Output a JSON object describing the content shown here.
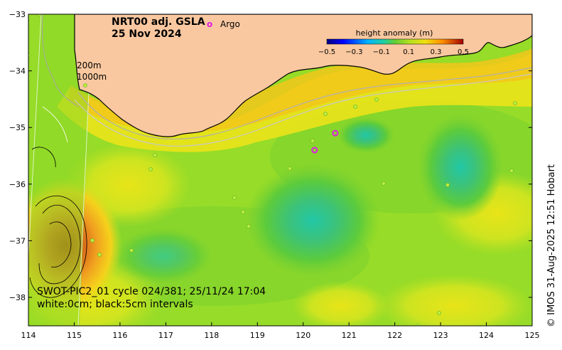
{
  "title": {
    "line1": "NRT00 adj. GSLA",
    "line2": "25 Nov 2024"
  },
  "legend": {
    "argo_symbol": "o",
    "argo_label": "Argo"
  },
  "colorbar": {
    "title": "height anomaly (m)",
    "ticks": [
      "−0.5",
      "−0.3",
      "−0.1",
      "0.1",
      "0.3",
      "0.5"
    ],
    "tick_values": [
      -0.5,
      -0.3,
      -0.1,
      0.1,
      0.3,
      0.5
    ]
  },
  "isobaths": {
    "shallow": "200m",
    "deep": "1000m"
  },
  "axes": {
    "lon_ticks": [
      "114",
      "115",
      "116",
      "117",
      "118",
      "119",
      "120",
      "121",
      "122",
      "123",
      "124",
      "125"
    ],
    "lon_values": [
      114,
      115,
      116,
      117,
      118,
      119,
      120,
      121,
      122,
      123,
      124,
      125
    ],
    "lat_ticks": [
      "−33",
      "−34",
      "−35",
      "−36",
      "−37",
      "−38"
    ],
    "lat_values": [
      -33,
      -34,
      -35,
      -36,
      -37,
      -38
    ],
    "lon_range": [
      114,
      125
    ],
    "lat_range": [
      -38.5,
      -33
    ]
  },
  "swot_caption": {
    "line1": "SWOT-PIC2_01 cycle 024/381; 25/11/24 17:04",
    "line2": "white:0cm; black:5cm intervals"
  },
  "credit": "© IMOS 31-Aug-2025 12:51 Hobart",
  "argo_floats": [
    {
      "lon": 120.7,
      "lat": -35.1
    },
    {
      "lon": 120.25,
      "lat": -35.4
    }
  ],
  "anomaly_features": [
    {
      "name": "warm eddy",
      "lon": 114.9,
      "lat": -37.0,
      "value_m": 0.45
    },
    {
      "name": "cold eddy",
      "lon": 120.2,
      "lat": -36.7,
      "value_m": -0.2
    },
    {
      "name": "cold eddy",
      "lon": 123.4,
      "lat": -35.7,
      "value_m": -0.2
    },
    {
      "name": "coastal high",
      "lon": 121.9,
      "lat": -33.9,
      "value_m": 0.35
    }
  ],
  "colors": {
    "land": "#f9c8a0",
    "argo": "#e020e0",
    "background_field": "#96dc28"
  }
}
